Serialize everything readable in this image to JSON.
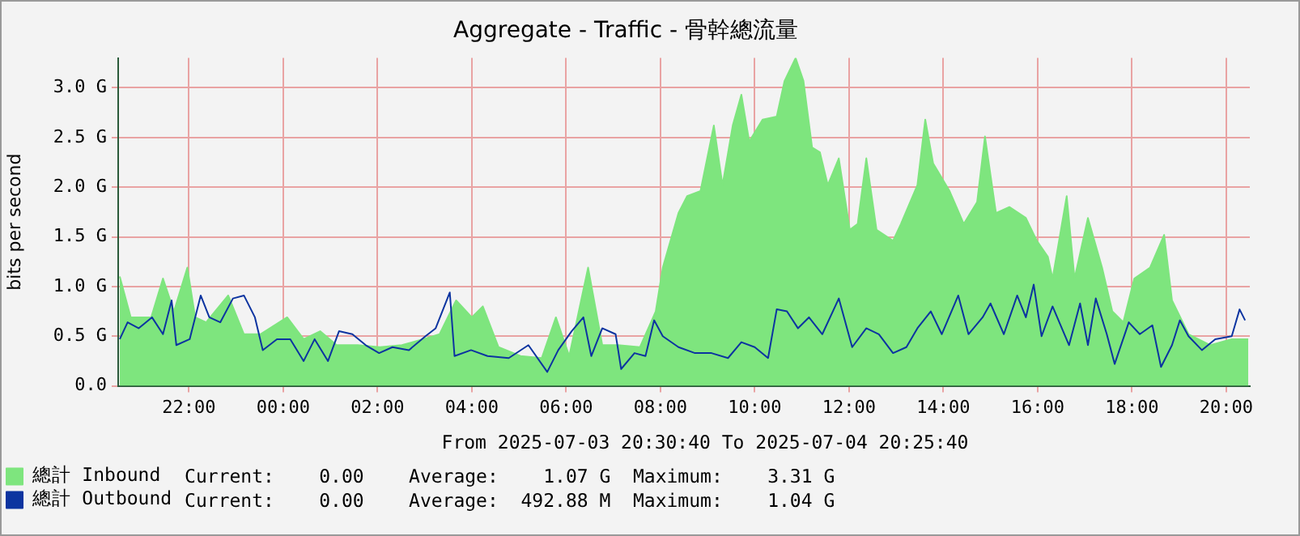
{
  "chart_data": {
    "type": "area",
    "title": "Aggregate - Traffic - 骨幹總流量",
    "ylabel": "bits per second",
    "xlim": [
      "2025-07-03T20:30",
      "2025-07-04T20:30"
    ],
    "xticks": [
      {
        "value": "2025-07-03T22:00",
        "label": "22:00"
      },
      {
        "value": "2025-07-04T00:00",
        "label": "00:00"
      },
      {
        "value": "2025-07-04T02:00",
        "label": "02:00"
      },
      {
        "value": "2025-07-04T04:00",
        "label": "04:00"
      },
      {
        "value": "2025-07-04T06:00",
        "label": "06:00"
      },
      {
        "value": "2025-07-04T08:00",
        "label": "08:00"
      },
      {
        "value": "2025-07-04T10:00",
        "label": "10:00"
      },
      {
        "value": "2025-07-04T12:00",
        "label": "12:00"
      },
      {
        "value": "2025-07-04T14:00",
        "label": "14:00"
      },
      {
        "value": "2025-07-04T16:00",
        "label": "16:00"
      },
      {
        "value": "2025-07-04T18:00",
        "label": "18:00"
      },
      {
        "value": "2025-07-04T20:00",
        "label": "20:00"
      }
    ],
    "ylim": [
      0,
      3.3
    ],
    "yticks": [
      {
        "value": 0,
        "label": "0.0"
      },
      {
        "value": 0.5,
        "label": "0.5 G"
      },
      {
        "value": 1,
        "label": "1.0 G"
      },
      {
        "value": 1.5,
        "label": "1.5 G"
      },
      {
        "value": 2,
        "label": "2.0 G"
      },
      {
        "value": 2.5,
        "label": "2.5 G"
      },
      {
        "value": 3,
        "label": "3.0 G"
      }
    ],
    "grid": true,
    "legend": "bottom left",
    "marker": "none",
    "line_style": "solid",
    "annotations": [
      "From 2025-07-03 20:30:40 To 2025-07-04 20:25:40",
      "Current:    0.00    Average:    1.07 G  Maximum:    3.31 G",
      "Current:    0.00    Average:  492.88 M  Maximum:    1.04 G"
    ],
    "series": [
      {
        "name": "總計 Inbound",
        "color": "#7ee57e",
        "x": [
          "2025-07-03T20:32",
          "2025-07-03T20:46",
          "2025-07-03T21:12",
          "2025-07-03T21:27",
          "2025-07-03T21:41",
          "2025-07-03T21:58",
          "2025-07-03T22:08",
          "2025-07-03T22:22",
          "2025-07-03T22:50",
          "2025-07-03T23:10",
          "2025-07-03T23:31",
          "2025-07-04T00:05",
          "2025-07-04T00:26",
          "2025-07-04T00:47",
          "2025-07-04T01:08",
          "2025-07-04T01:35",
          "2025-07-04T02:03",
          "2025-07-04T02:31",
          "2025-07-04T02:58",
          "2025-07-04T03:19",
          "2025-07-04T03:40",
          "2025-07-04T04:00",
          "2025-07-04T04:14",
          "2025-07-04T04:34",
          "2025-07-04T05:02",
          "2025-07-04T05:29",
          "2025-07-04T05:47",
          "2025-07-04T06:04",
          "2025-07-04T06:28",
          "2025-07-04T06:46",
          "2025-07-04T07:06",
          "2025-07-04T07:34",
          "2025-07-04T07:54",
          "2025-07-04T08:03",
          "2025-07-04T08:23",
          "2025-07-04T08:34",
          "2025-07-04T08:51",
          "2025-07-04T09:08",
          "2025-07-04T09:19",
          "2025-07-04T09:32",
          "2025-07-04T09:43",
          "2025-07-04T09:53",
          "2025-07-04T10:10",
          "2025-07-04T10:28",
          "2025-07-04T10:38",
          "2025-07-04T10:52",
          "2025-07-04T11:02",
          "2025-07-04T11:13",
          "2025-07-04T11:23",
          "2025-07-04T11:33",
          "2025-07-04T11:47",
          "2025-07-04T12:01",
          "2025-07-04T12:11",
          "2025-07-04T12:22",
          "2025-07-04T12:35",
          "2025-07-04T12:56",
          "2025-07-04T13:06",
          "2025-07-04T13:27",
          "2025-07-04T13:37",
          "2025-07-04T13:47",
          "2025-07-04T14:08",
          "2025-07-04T14:26",
          "2025-07-04T14:43",
          "2025-07-04T14:53",
          "2025-07-04T15:07",
          "2025-07-04T15:24",
          "2025-07-04T15:45",
          "2025-07-04T15:59",
          "2025-07-04T16:13",
          "2025-07-04T16:19",
          "2025-07-04T16:37",
          "2025-07-04T16:47",
          "2025-07-04T17:04",
          "2025-07-04T17:22",
          "2025-07-04T17:35",
          "2025-07-04T17:49",
          "2025-07-04T18:03",
          "2025-07-04T18:23",
          "2025-07-04T18:41",
          "2025-07-04T18:51",
          "2025-07-04T19:12",
          "2025-07-04T19:40",
          "2025-07-04T20:07",
          "2025-07-04T20:28"
        ],
        "values": [
          1.1,
          0.69,
          0.69,
          1.08,
          0.75,
          1.19,
          0.69,
          0.64,
          0.91,
          0.52,
          0.52,
          0.69,
          0.47,
          0.55,
          0.41,
          0.41,
          0.39,
          0.41,
          0.47,
          0.52,
          0.86,
          0.69,
          0.8,
          0.39,
          0.3,
          0.28,
          0.69,
          0.3,
          1.19,
          0.41,
          0.41,
          0.39,
          0.75,
          1.19,
          1.74,
          1.91,
          1.96,
          2.62,
          2.02,
          2.62,
          2.93,
          2.46,
          2.68,
          2.71,
          3.07,
          3.3,
          3.07,
          2.4,
          2.35,
          2.02,
          2.29,
          1.57,
          1.63,
          2.29,
          1.57,
          1.46,
          1.63,
          2.02,
          2.68,
          2.24,
          1.96,
          1.63,
          1.85,
          2.51,
          1.74,
          1.8,
          1.69,
          1.46,
          1.3,
          1.08,
          1.91,
          1.08,
          1.69,
          1.19,
          0.75,
          0.64,
          1.08,
          1.19,
          1.52,
          0.86,
          0.52,
          0.41,
          0.47,
          0.47
        ]
      },
      {
        "name": "總計 Outbound",
        "type": "line",
        "color": "#0c34a0",
        "x": [
          "2025-07-03T20:32",
          "2025-07-03T20:42",
          "2025-07-03T20:56",
          "2025-07-03T21:13",
          "2025-07-03T21:27",
          "2025-07-03T21:38",
          "2025-07-03T21:44",
          "2025-07-03T22:01",
          "2025-07-03T22:15",
          "2025-07-03T22:26",
          "2025-07-03T22:40",
          "2025-07-03T22:56",
          "2025-07-03T23:10",
          "2025-07-03T23:24",
          "2025-07-03T23:34",
          "2025-07-03T23:52",
          "2025-07-04T00:09",
          "2025-07-04T00:26",
          "2025-07-04T00:40",
          "2025-07-04T00:57",
          "2025-07-04T01:11",
          "2025-07-04T01:28",
          "2025-07-04T01:45",
          "2025-07-04T02:02",
          "2025-07-04T02:19",
          "2025-07-04T02:40",
          "2025-07-04T03:01",
          "2025-07-04T03:14",
          "2025-07-04T03:32",
          "2025-07-04T03:38",
          "2025-07-04T03:59",
          "2025-07-04T04:20",
          "2025-07-04T04:47",
          "2025-07-04T05:12",
          "2025-07-04T05:36",
          "2025-07-04T05:50",
          "2025-07-04T06:07",
          "2025-07-04T06:22",
          "2025-07-04T06:32",
          "2025-07-04T06:46",
          "2025-07-04T07:03",
          "2025-07-04T07:10",
          "2025-07-04T07:27",
          "2025-07-04T07:41",
          "2025-07-04T07:52",
          "2025-07-04T08:03",
          "2025-07-04T08:23",
          "2025-07-04T08:44",
          "2025-07-04T09:05",
          "2025-07-04T09:26",
          "2025-07-04T09:43",
          "2025-07-04T10:00",
          "2025-07-04T10:17",
          "2025-07-04T10:28",
          "2025-07-04T10:41",
          "2025-07-04T10:55",
          "2025-07-04T11:09",
          "2025-07-04T11:26",
          "2025-07-04T11:47",
          "2025-07-04T12:04",
          "2025-07-04T12:22",
          "2025-07-04T12:38",
          "2025-07-04T12:56",
          "2025-07-04T13:13",
          "2025-07-04T13:27",
          "2025-07-04T13:44",
          "2025-07-04T13:58",
          "2025-07-04T14:19",
          "2025-07-04T14:32",
          "2025-07-04T14:50",
          "2025-07-04T15:00",
          "2025-07-04T15:17",
          "2025-07-04T15:34",
          "2025-07-04T15:45",
          "2025-07-04T15:55",
          "2025-07-04T16:05",
          "2025-07-04T16:19",
          "2025-07-04T16:40",
          "2025-07-04T16:54",
          "2025-07-04T17:04",
          "2025-07-04T17:14",
          "2025-07-04T17:28",
          "2025-07-04T17:38",
          "2025-07-04T17:56",
          "2025-07-04T18:10",
          "2025-07-04T18:26",
          "2025-07-04T18:37",
          "2025-07-04T18:51",
          "2025-07-04T19:01",
          "2025-07-04T19:12",
          "2025-07-04T19:29",
          "2025-07-04T19:46",
          "2025-07-04T20:07",
          "2025-07-04T20:17",
          "2025-07-04T20:24"
        ],
        "values": [
          0.47,
          0.64,
          0.58,
          0.69,
          0.52,
          0.86,
          0.41,
          0.47,
          0.91,
          0.69,
          0.64,
          0.88,
          0.91,
          0.69,
          0.36,
          0.47,
          0.47,
          0.25,
          0.47,
          0.25,
          0.55,
          0.52,
          0.41,
          0.33,
          0.39,
          0.36,
          0.5,
          0.58,
          0.94,
          0.3,
          0.36,
          0.3,
          0.28,
          0.41,
          0.14,
          0.36,
          0.55,
          0.69,
          0.3,
          0.58,
          0.52,
          0.17,
          0.33,
          0.3,
          0.66,
          0.5,
          0.39,
          0.33,
          0.33,
          0.28,
          0.44,
          0.39,
          0.28,
          0.77,
          0.75,
          0.58,
          0.69,
          0.52,
          0.88,
          0.39,
          0.58,
          0.52,
          0.33,
          0.39,
          0.58,
          0.75,
          0.52,
          0.91,
          0.52,
          0.69,
          0.83,
          0.52,
          0.91,
          0.69,
          1.02,
          0.5,
          0.8,
          0.41,
          0.83,
          0.41,
          0.88,
          0.52,
          0.22,
          0.64,
          0.52,
          0.61,
          0.19,
          0.41,
          0.66,
          0.5,
          0.36,
          0.47,
          0.5,
          0.77,
          0.66
        ]
      }
    ]
  }
}
